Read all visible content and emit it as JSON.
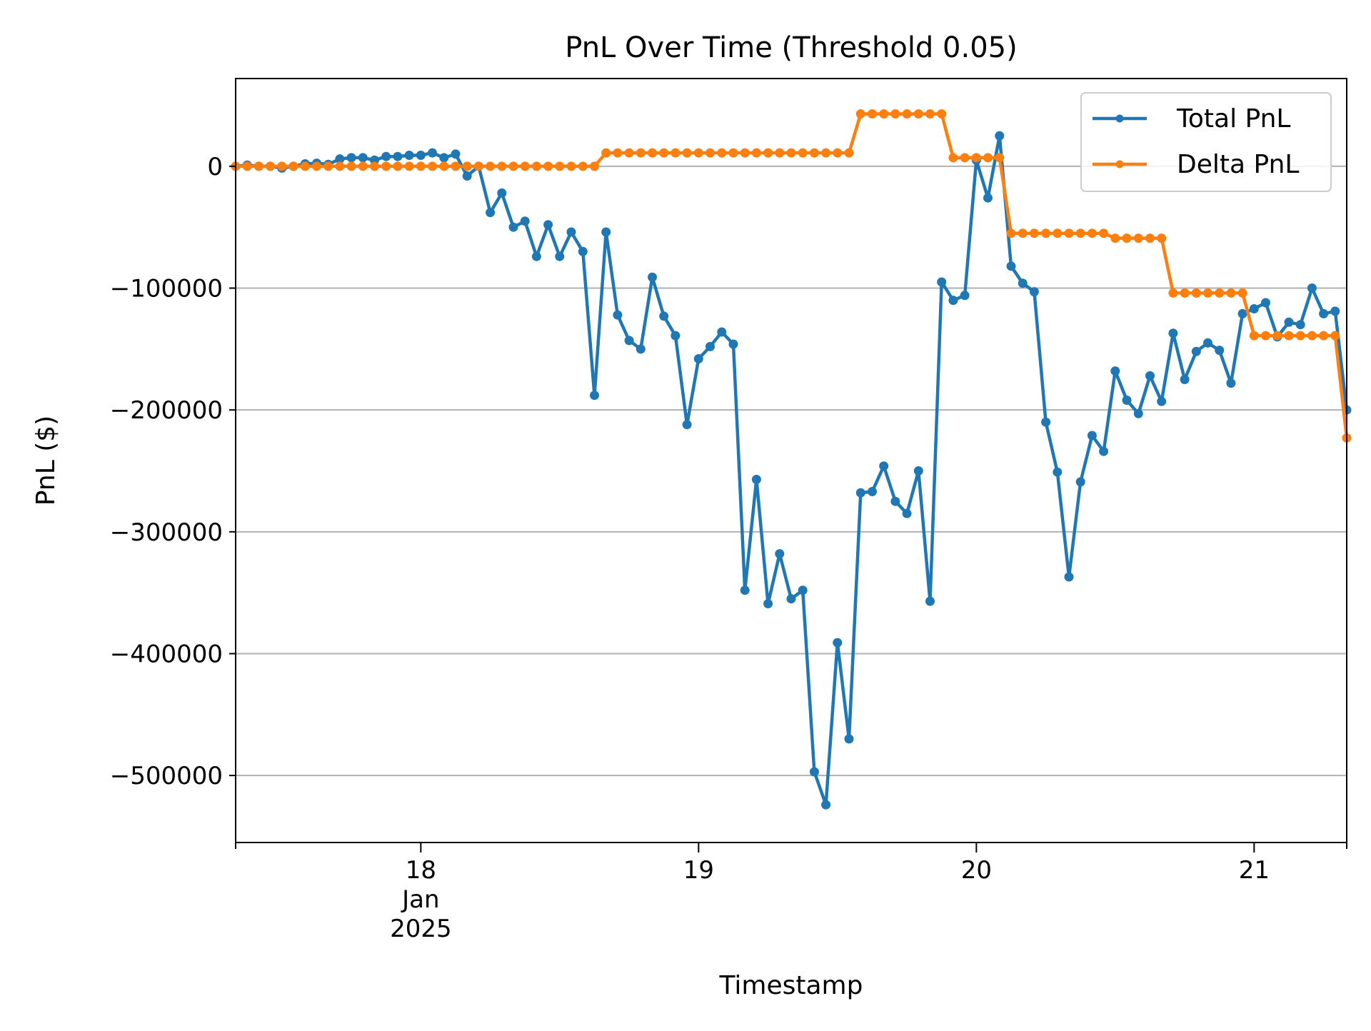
{
  "chart_data": {
    "type": "line",
    "title": "PnL Over Time (Threshold 0.05)",
    "xlabel": "Timestamp",
    "ylabel": "PnL ($)",
    "xlim": [
      "2025-01-17 08:00",
      "2025-01-21 08:00"
    ],
    "ylim": [
      -555000,
      72000
    ],
    "x_ticks": [
      {
        "value": "2025-01-18",
        "label": "18",
        "sublabels": [
          "Jan",
          "2025"
        ]
      },
      {
        "value": "2025-01-19",
        "label": "19",
        "sublabels": []
      },
      {
        "value": "2025-01-20",
        "label": "20",
        "sublabels": []
      },
      {
        "value": "2025-01-21",
        "label": "21",
        "sublabels": []
      }
    ],
    "y_ticks": [
      {
        "value": 0,
        "label": "0"
      },
      {
        "value": -100000,
        "label": "−100000"
      },
      {
        "value": -200000,
        "label": "−200000"
      },
      {
        "value": -300000,
        "label": "−300000"
      },
      {
        "value": -400000,
        "label": "−400000"
      },
      {
        "value": -500000,
        "label": "−500000"
      }
    ],
    "grid": "horizontal",
    "legend_position": "upper right",
    "x": [
      "2025-01-17 08:00",
      "2025-01-17 09:00",
      "2025-01-17 10:00",
      "2025-01-17 11:00",
      "2025-01-17 12:00",
      "2025-01-17 13:00",
      "2025-01-17 14:00",
      "2025-01-17 15:00",
      "2025-01-17 16:00",
      "2025-01-17 17:00",
      "2025-01-17 18:00",
      "2025-01-17 19:00",
      "2025-01-17 20:00",
      "2025-01-17 21:00",
      "2025-01-17 22:00",
      "2025-01-17 23:00",
      "2025-01-18 00:00",
      "2025-01-18 01:00",
      "2025-01-18 02:00",
      "2025-01-18 03:00",
      "2025-01-18 04:00",
      "2025-01-18 05:00",
      "2025-01-18 06:00",
      "2025-01-18 07:00",
      "2025-01-18 08:00",
      "2025-01-18 09:00",
      "2025-01-18 10:00",
      "2025-01-18 11:00",
      "2025-01-18 12:00",
      "2025-01-18 13:00",
      "2025-01-18 14:00",
      "2025-01-18 15:00",
      "2025-01-18 16:00",
      "2025-01-18 17:00",
      "2025-01-18 18:00",
      "2025-01-18 19:00",
      "2025-01-18 20:00",
      "2025-01-18 21:00",
      "2025-01-18 22:00",
      "2025-01-18 23:00",
      "2025-01-19 00:00",
      "2025-01-19 01:00",
      "2025-01-19 02:00",
      "2025-01-19 03:00",
      "2025-01-19 04:00",
      "2025-01-19 05:00",
      "2025-01-19 06:00",
      "2025-01-19 07:00",
      "2025-01-19 08:00",
      "2025-01-19 09:00",
      "2025-01-19 10:00",
      "2025-01-19 11:00",
      "2025-01-19 12:00",
      "2025-01-19 13:00",
      "2025-01-19 14:00",
      "2025-01-19 15:00",
      "2025-01-19 16:00",
      "2025-01-19 17:00",
      "2025-01-19 18:00",
      "2025-01-19 19:00",
      "2025-01-19 20:00",
      "2025-01-19 21:00",
      "2025-01-19 22:00",
      "2025-01-19 23:00",
      "2025-01-20 00:00",
      "2025-01-20 01:00",
      "2025-01-20 02:00",
      "2025-01-20 03:00",
      "2025-01-20 04:00",
      "2025-01-20 05:00",
      "2025-01-20 06:00",
      "2025-01-20 07:00",
      "2025-01-20 08:00",
      "2025-01-20 09:00",
      "2025-01-20 10:00",
      "2025-01-20 11:00",
      "2025-01-20 12:00",
      "2025-01-20 13:00",
      "2025-01-20 14:00",
      "2025-01-20 15:00",
      "2025-01-20 16:00",
      "2025-01-20 17:00",
      "2025-01-20 18:00",
      "2025-01-20 19:00",
      "2025-01-20 20:00",
      "2025-01-20 21:00",
      "2025-01-20 22:00",
      "2025-01-20 23:00",
      "2025-01-21 00:00",
      "2025-01-21 01:00",
      "2025-01-21 02:00",
      "2025-01-21 03:00",
      "2025-01-21 04:00",
      "2025-01-21 05:00",
      "2025-01-21 06:00",
      "2025-01-21 07:00",
      "2025-01-21 08:00"
    ],
    "series": [
      {
        "name": "Total PnL",
        "color": "#1f77b4",
        "values": [
          0,
          1000,
          0,
          0,
          -1500,
          0,
          2000,
          2500,
          1500,
          6000,
          7000,
          7000,
          5000,
          8000,
          8000,
          9000,
          9000,
          11000,
          7000,
          10000,
          -8000,
          0,
          -38000,
          -22000,
          -50000,
          -45000,
          -74000,
          -48000,
          -74000,
          -54000,
          -70000,
          -188000,
          -54000,
          -122000,
          -143000,
          -150000,
          -91000,
          -123000,
          -139000,
          -212000,
          -158000,
          -148000,
          -136000,
          -146000,
          -348000,
          -257000,
          -359000,
          -318000,
          -355000,
          -348000,
          -497000,
          -524000,
          -391000,
          -470000,
          -268000,
          -267000,
          -246000,
          -275000,
          -285000,
          -250000,
          -357000,
          -95000,
          -110000,
          -106000,
          5000,
          -26000,
          25000,
          -82000,
          -96000,
          -103000,
          -210000,
          -251000,
          -337000,
          -259000,
          -221000,
          -234000,
          -168000,
          -192000,
          -203000,
          -172000,
          -193000,
          -137000,
          -175000,
          -152000,
          -145000,
          -151000,
          -178000,
          -121000,
          -117000,
          -112000,
          -140000,
          -128000,
          -130000,
          -100000,
          -121000,
          -119000,
          -200000
        ]
      },
      {
        "name": "Delta PnL",
        "color": "#ff7f0e",
        "values": [
          0,
          0,
          0,
          0,
          0,
          0,
          0,
          0,
          0,
          0,
          0,
          0,
          0,
          0,
          0,
          0,
          0,
          0,
          0,
          0,
          0,
          0,
          0,
          0,
          0,
          0,
          0,
          0,
          0,
          0,
          0,
          0,
          11000,
          11000,
          11000,
          11000,
          11000,
          11000,
          11000,
          11000,
          11000,
          11000,
          11000,
          11000,
          11000,
          11000,
          11000,
          11000,
          11000,
          11000,
          11000,
          11000,
          11000,
          11000,
          43000,
          43000,
          43000,
          43000,
          43000,
          43000,
          43000,
          43000,
          7000,
          7000,
          7000,
          7000,
          7000,
          -55000,
          -55000,
          -55000,
          -55000,
          -55000,
          -55000,
          -55000,
          -55000,
          -55000,
          -59000,
          -59000,
          -59000,
          -59000,
          -59000,
          -104000,
          -104000,
          -104000,
          -104000,
          -104000,
          -104000,
          -104000,
          -139000,
          -139000,
          -139000,
          -139000,
          -139000,
          -139000,
          -139000,
          -139000,
          -223000
        ]
      }
    ]
  }
}
